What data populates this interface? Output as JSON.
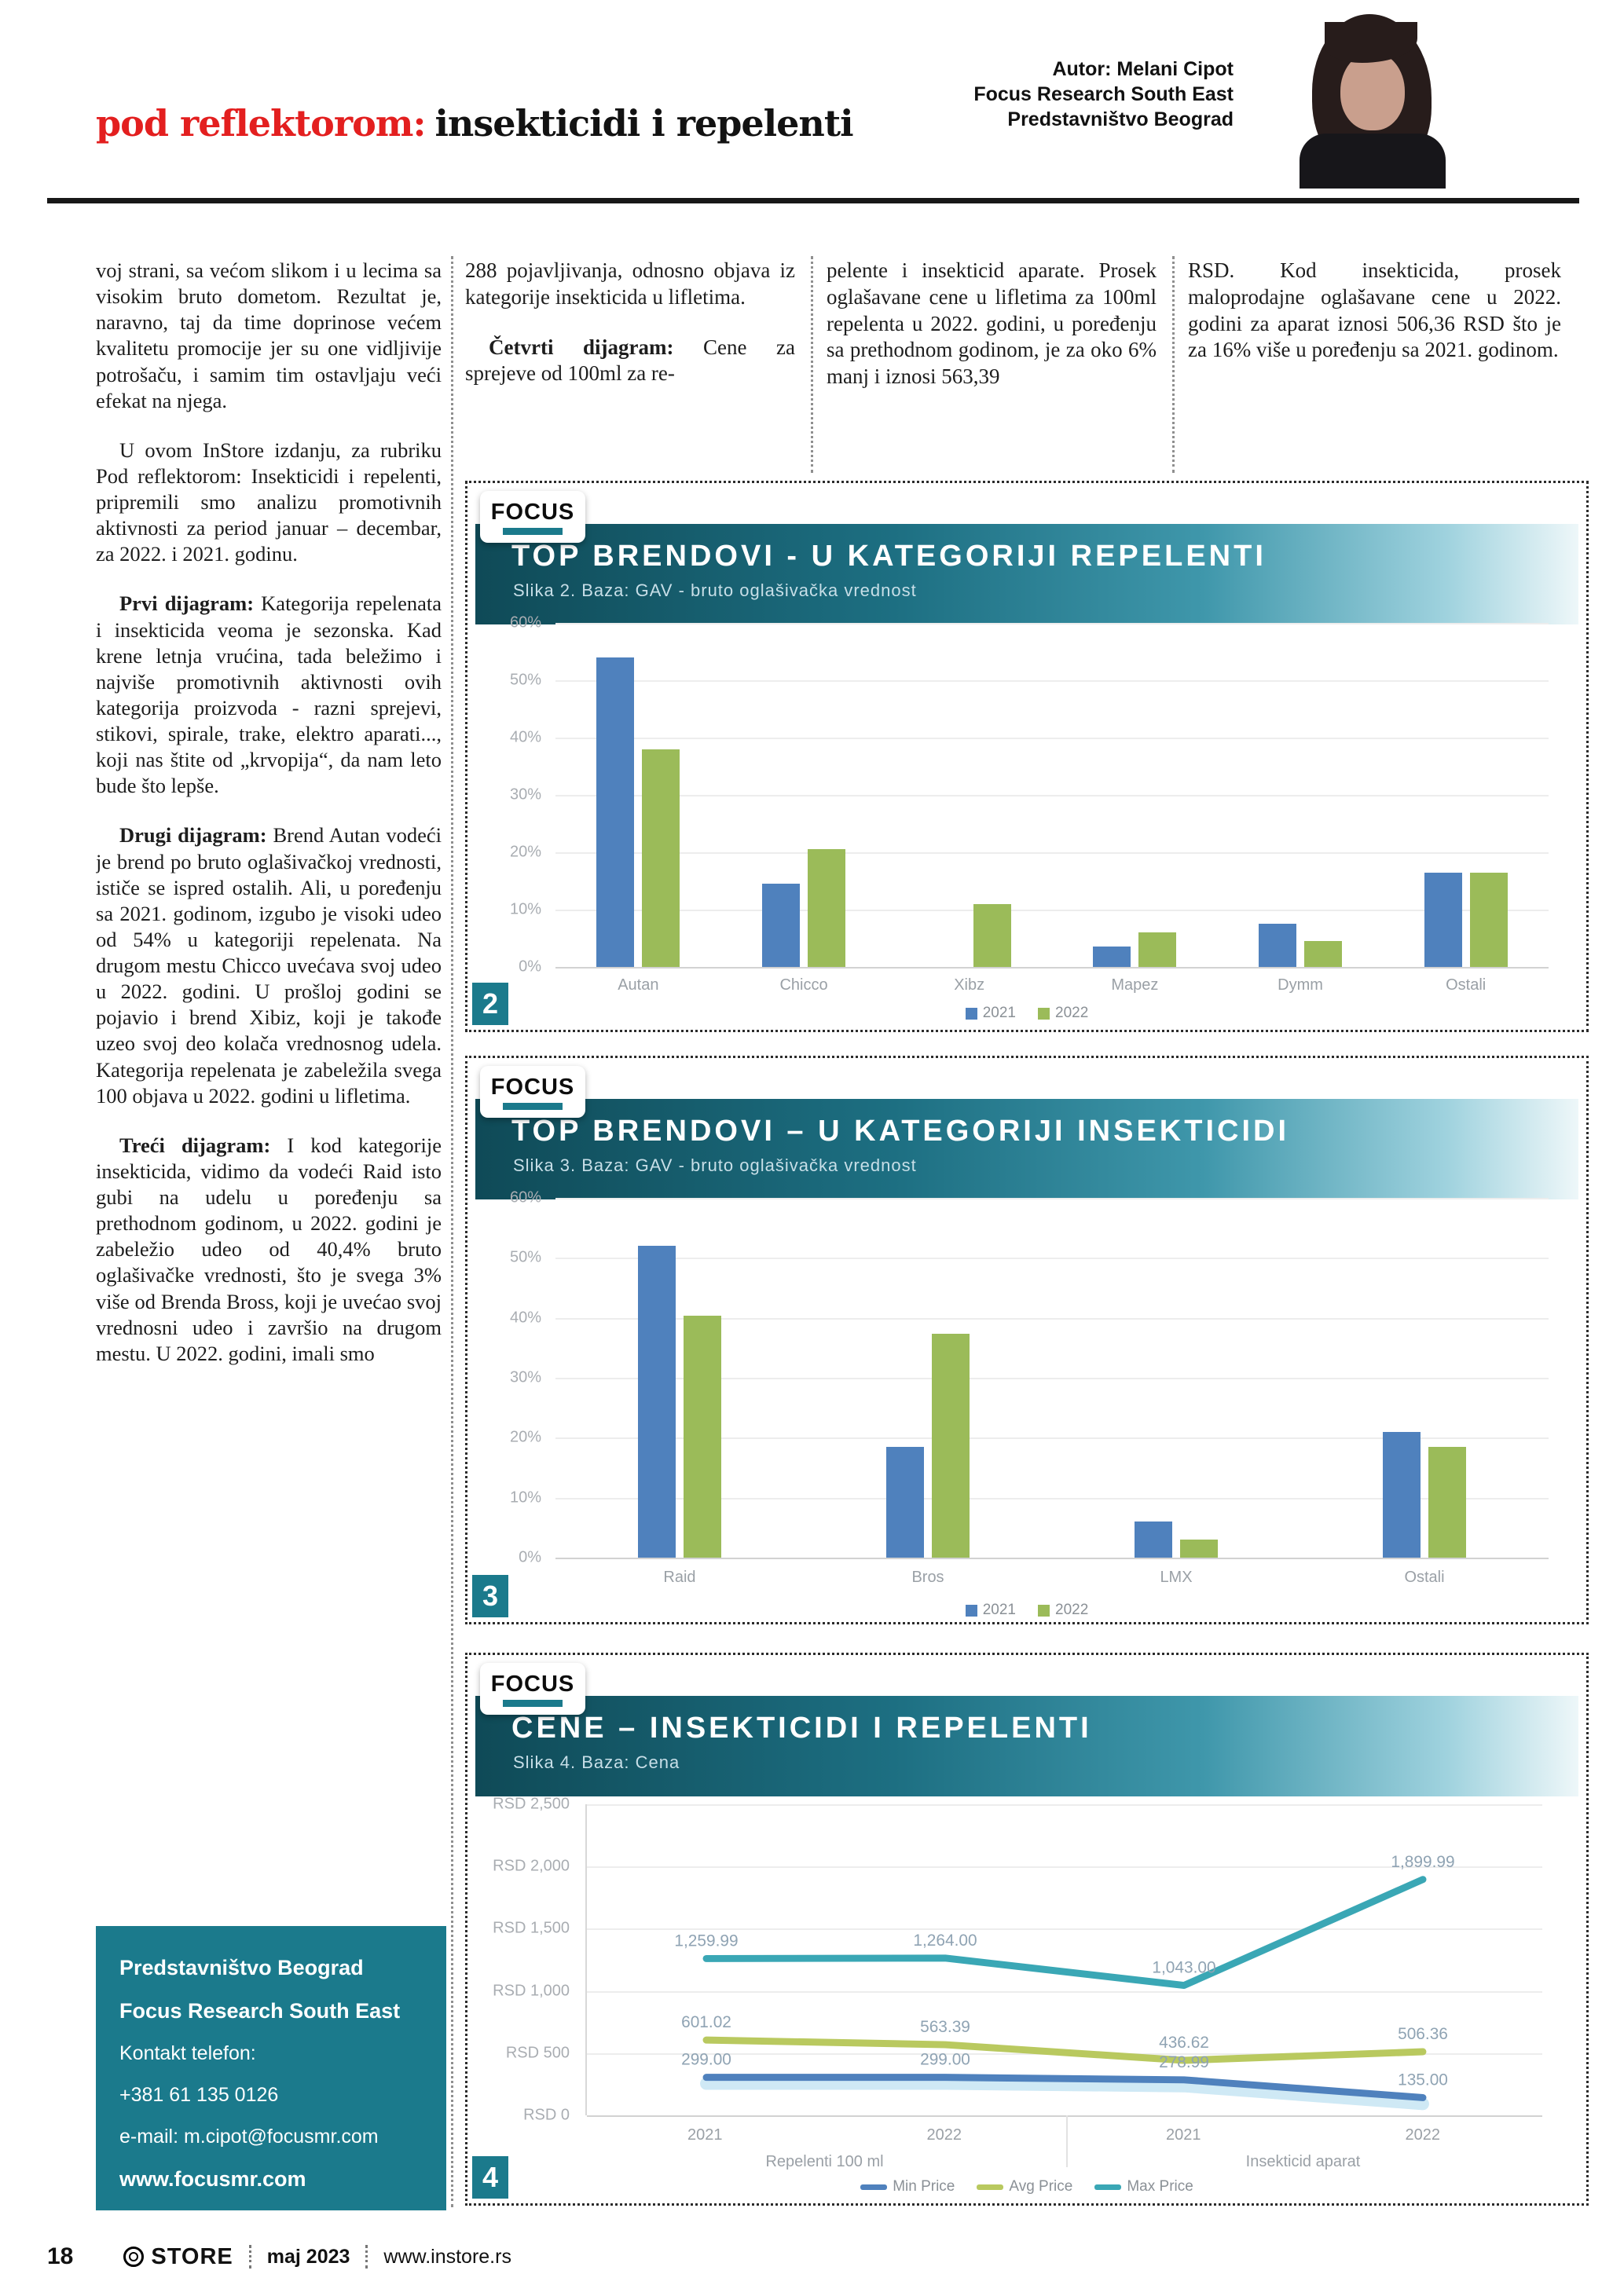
{
  "header": {
    "kicker": "pod reflektorom:",
    "title": "insekticidi i repelenti",
    "author_lines": [
      "Autor: Melani Cipot",
      "Focus Research South East",
      "Predstavništvo Beograd"
    ]
  },
  "intro_columns": [
    {
      "paragraphs": [
        {
          "lead": "",
          "indent": false,
          "text": "voj strani, sa većom slikom i u lecima sa visokim bruto dometom. Rezultat je, naravno, taj da time doprinose većem kvalitetu promocije jer su one vidljivije potrošaču, i samim tim ostavljaju veći efekat na njega."
        }
      ]
    },
    {
      "paragraphs": [
        {
          "lead": "",
          "indent": false,
          "text": "288 pojavljivanja, odnosno objava iz kategorije insekticida u lifletima."
        },
        {
          "lead": "Četvrti dijagram:",
          "indent": true,
          "text": "Cene za sprejeve od 100ml za re-"
        }
      ]
    },
    {
      "paragraphs": [
        {
          "lead": "",
          "indent": false,
          "text": "pelente i insekticid aparate. Prosek oglašavane cene u lifletima za 100ml repelenta u 2022. godini, u poređenju sa prethodnom godinom, je za oko 6% manj i iznosi 563,39"
        }
      ]
    },
    {
      "paragraphs": [
        {
          "lead": "",
          "indent": false,
          "text": "RSD. Kod insekticida, prosek maloprodajne oglašavane cene u 2022. godini za aparat iznosi 506,36 RSD što je za 16% više u poređenju sa 2021. godinom."
        }
      ]
    }
  ],
  "article": {
    "paragraphs": [
      {
        "lead": "",
        "indent": true,
        "text": "U ovom InStore izdanju, za rubriku Pod reflektorom: Insekticidi i repelenti, pripremili smo analizu promotivnih aktivnosti za period januar – decembar, za 2022. i 2021. godinu."
      },
      {
        "lead": "Prvi dijagram:",
        "indent": true,
        "text": "Kategorija repelenata i insekticida veoma je sezonska. Kad krene letnja vrućina, tada beležimo i najviše promotivnih aktivnosti ovih kategorija proizvoda - razni sprejevi, stikovi, spirale, trake, elektro aparati..., koji nas štite od „krvopija“, da nam leto bude što lepše."
      },
      {
        "lead": "Drugi dijagram:",
        "indent": true,
        "text": "Brend Autan vodeći je brend po bruto oglašivačkoj vrednosti, ističe se ispred ostalih. Ali, u poređenju sa 2021. godinom, izgubo je visoki udeo od 54% u kategoriji repelenata. Na drugom mestu Chicco uvećava svoj udeo u 2022. godini. U prošloj godini se pojavio i brend Xibiz, koji je takođe uzeo svoj deo kolača vrednosnog udela. Kategorija repelenata je zabeležila svega 100 objava u 2022. godini u lifletima."
      },
      {
        "lead": "Treći dijagram:",
        "indent": true,
        "text": "I kod kategorije insekticida, vidimo da vodeći Raid isto gubi na udelu u poređenju sa prethodnom godinom, u 2022. godini je zabeležio udeo od 40,4% bruto oglašivačke vrednosti, što je svega 3% više od Brenda Bross, koji je uvećao svoj vrednosni udeo i završio na drugom mestu. U 2022. godini, imali smo"
      }
    ]
  },
  "contact": {
    "lines": [
      {
        "text": "Predstavništvo Beograd",
        "bold": true
      },
      {
        "text": "Focus Research South East",
        "bold": true
      },
      {
        "text": "Kontakt telefon:",
        "bold": false
      },
      {
        "text": "+381 61 135 0126",
        "bold": false
      },
      {
        "text": "e-mail: m.cipot@focusmr.com",
        "bold": false
      },
      {
        "text": "www.focusmr.com",
        "bold": true
      }
    ]
  },
  "logo": {
    "text": "FOCUS"
  },
  "chart_data": [
    {
      "type": "bar",
      "figure_label": "2",
      "title": "TOP BRENDOVI - U KATEGORIJI REPELENTI",
      "subtitle": "Slika 2. Baza: GAV - bruto oglašivačka vrednost",
      "categories": [
        "Autan",
        "Chicco",
        "Xibz",
        "Mapez",
        "Dymm",
        "Ostali"
      ],
      "series": [
        {
          "name": "2021",
          "color": "#4f81bd",
          "values": [
            54,
            14.5,
            0,
            3.5,
            7.5,
            16.5
          ]
        },
        {
          "name": "2022",
          "color": "#9bbb59",
          "values": [
            38,
            20.5,
            11,
            6,
            4.5,
            16.5
          ]
        }
      ],
      "yticks": [
        "60%",
        "50%",
        "40%",
        "30%",
        "20%",
        "10%",
        "0%"
      ],
      "ylim": [
        0,
        60
      ],
      "legend_position": "bottom",
      "grid": true
    },
    {
      "type": "bar",
      "figure_label": "3",
      "title": "TOP BRENDOVI – U KATEGORIJI INSEKTICIDI",
      "subtitle": "Slika 3. Baza: GAV - bruto oglašivačka vrednost",
      "categories": [
        "Raid",
        "Bros",
        "LMX",
        "Ostali"
      ],
      "series": [
        {
          "name": "2021",
          "color": "#4f81bd",
          "values": [
            52,
            18.5,
            6,
            21
          ]
        },
        {
          "name": "2022",
          "color": "#9bbb59",
          "values": [
            40.4,
            37.4,
            3,
            18.5
          ]
        }
      ],
      "yticks": [
        "60%",
        "50%",
        "40%",
        "30%",
        "20%",
        "10%",
        "0%"
      ],
      "ylim": [
        0,
        60
      ],
      "legend_position": "bottom",
      "grid": true
    },
    {
      "type": "line",
      "figure_label": "4",
      "title": "CENE – INSEKTICIDI I REPELENTI",
      "subtitle": "Slika 4. Baza: Cena",
      "x_groups": [
        {
          "label": "Repelenti 100 ml",
          "years": [
            "2021",
            "2022"
          ]
        },
        {
          "label": "Insekticid aparat",
          "years": [
            "2021",
            "2022"
          ]
        }
      ],
      "yticks": [
        "RSD 2,500",
        "RSD 2,000",
        "RSD 1,500",
        "RSD 1,000",
        "RSD 500",
        "RSD 0"
      ],
      "ylim": [
        0,
        2500
      ],
      "series": [
        {
          "name": "Min Price",
          "color": "#4f81bd",
          "values": [
            299.0,
            299.0,
            278.99,
            135.0
          ],
          "labels": [
            "299.00",
            "299.00",
            "278.99",
            "135.00"
          ]
        },
        {
          "name": "Avg Price",
          "color": "#b9c95f",
          "values": [
            601.02,
            563.39,
            436.62,
            506.36
          ],
          "labels": [
            "601.02",
            "563.39",
            "436.62",
            "506.36"
          ]
        },
        {
          "name": "Max Price",
          "color": "#3aa7b5",
          "values": [
            1259.99,
            1264.0,
            1043.0,
            1899.99
          ],
          "labels": [
            "1,259.99",
            "1,264.00",
            "1,043.00",
            "1,899.99"
          ]
        }
      ],
      "legend_position": "bottom",
      "grid": true
    }
  ],
  "footer": {
    "page": "18",
    "brand": "STORE",
    "issue": "maj 2023",
    "site": "www.instore.rs"
  },
  "colors": {
    "accent_red": "#e31f1f",
    "teal": "#1b7a8c",
    "bar_2021": "#4f81bd",
    "bar_2022": "#9bbb59",
    "line_min": "#4f81bd",
    "line_avg": "#b9c95f",
    "line_max": "#3aa7b5"
  }
}
